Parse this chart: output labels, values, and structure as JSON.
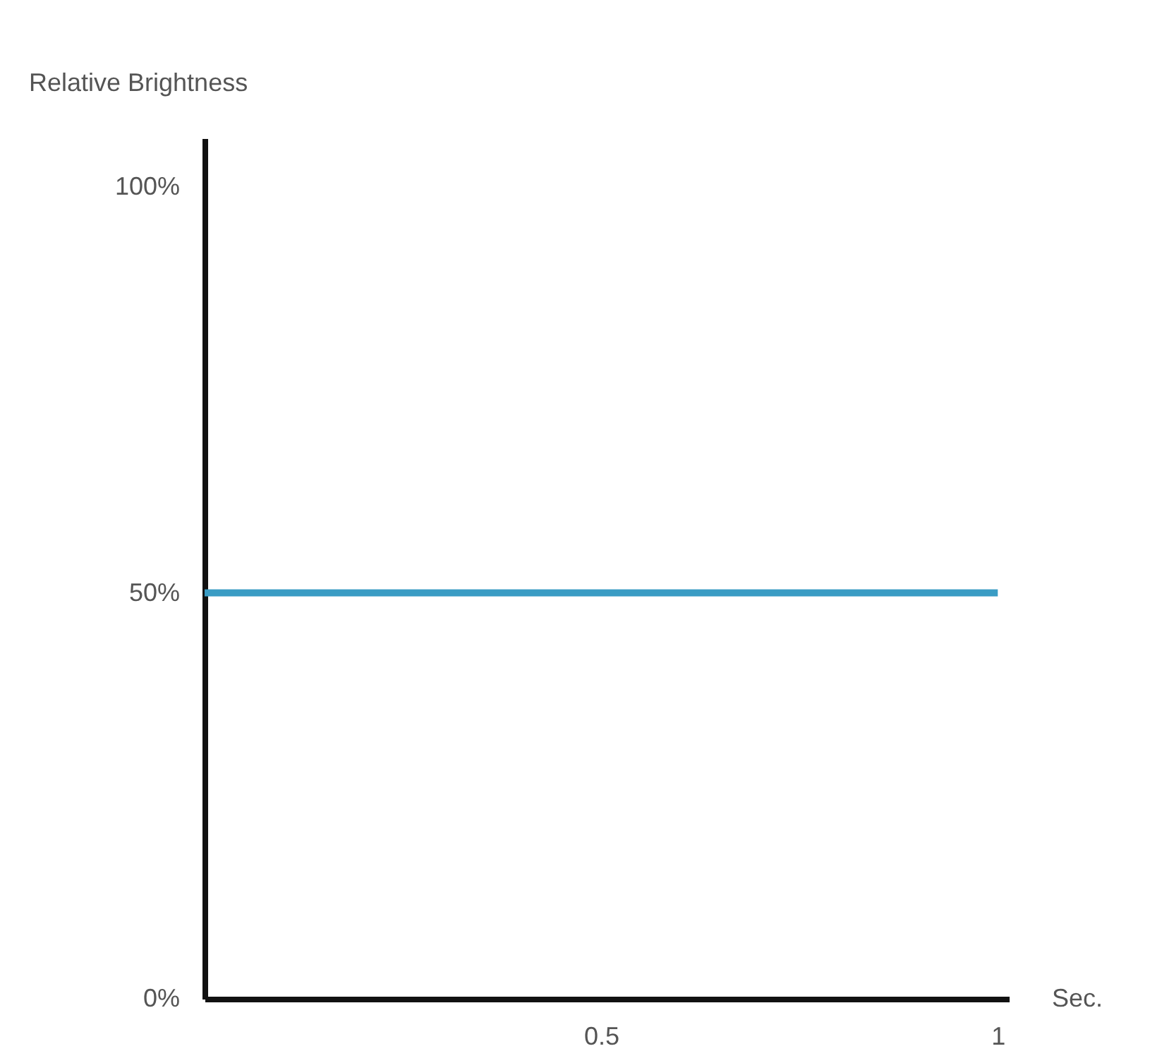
{
  "chart_data": {
    "type": "line",
    "xlabel": "Sec.",
    "ylabel": "Relative Brightness",
    "x": [
      0,
      1
    ],
    "series": [
      {
        "color": "#3a9cc4",
        "values": [
          50,
          50
        ]
      }
    ],
    "xlim": [
      0,
      1.014
    ],
    "xticks": [
      0.5,
      1
    ],
    "ylim": [
      0,
      106
    ],
    "yticks": [
      {
        "value": 0,
        "label": "0%"
      },
      {
        "value": 50,
        "label": "50%"
      },
      {
        "value": 100,
        "label": "100%"
      }
    ],
    "grid": false,
    "marker": "none",
    "line_style": "solid"
  }
}
